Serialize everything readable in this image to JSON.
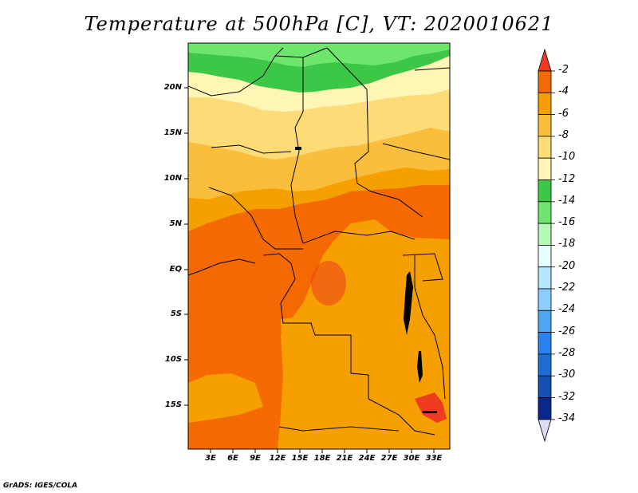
{
  "title": "Temperature at 500hPa [C], VT: 2020010621",
  "credit": "GrADS: IGES/COLA",
  "latitude_labels": [
    "20N",
    "15N",
    "10N",
    "5N",
    "EQ",
    "5S",
    "10S",
    "15S"
  ],
  "longitude_labels": [
    "3E",
    "6E",
    "9E",
    "12E",
    "15E",
    "18E",
    "21E",
    "24E",
    "27E",
    "30E",
    "33E"
  ],
  "colorbar": {
    "labels": [
      "-2",
      "-4",
      "-6",
      "-8",
      "-10",
      "-12",
      "-14",
      "-16",
      "-18",
      "-20",
      "-22",
      "-24",
      "-26",
      "-28",
      "-30",
      "-32",
      "-34"
    ],
    "colors": [
      "#f03c1e",
      "#f46a00",
      "#f5a000",
      "#fbbe3c",
      "#fddc78",
      "#fff5b4",
      "#3cc846",
      "#6ee66e",
      "#b4fab4",
      "#e6ffff",
      "#b4e6ff",
      "#8ccfff",
      "#50a5f5",
      "#2882f0",
      "#1e6ed2",
      "#1450b4",
      "#0a288c",
      "#dcdcf5"
    ]
  },
  "chart_data": {
    "type": "heatmap",
    "variable": "Temperature at 500hPa",
    "units": "C",
    "valid_time": "2020010621",
    "lat_range": [
      "19S",
      "24N"
    ],
    "lon_range": [
      "0E",
      "35E"
    ],
    "levels": [
      -2,
      -4,
      -6,
      -8,
      -10,
      -12,
      -14,
      -16,
      -18,
      -20,
      -22,
      -24,
      -26,
      -28,
      -30,
      -32,
      -34
    ]
  }
}
